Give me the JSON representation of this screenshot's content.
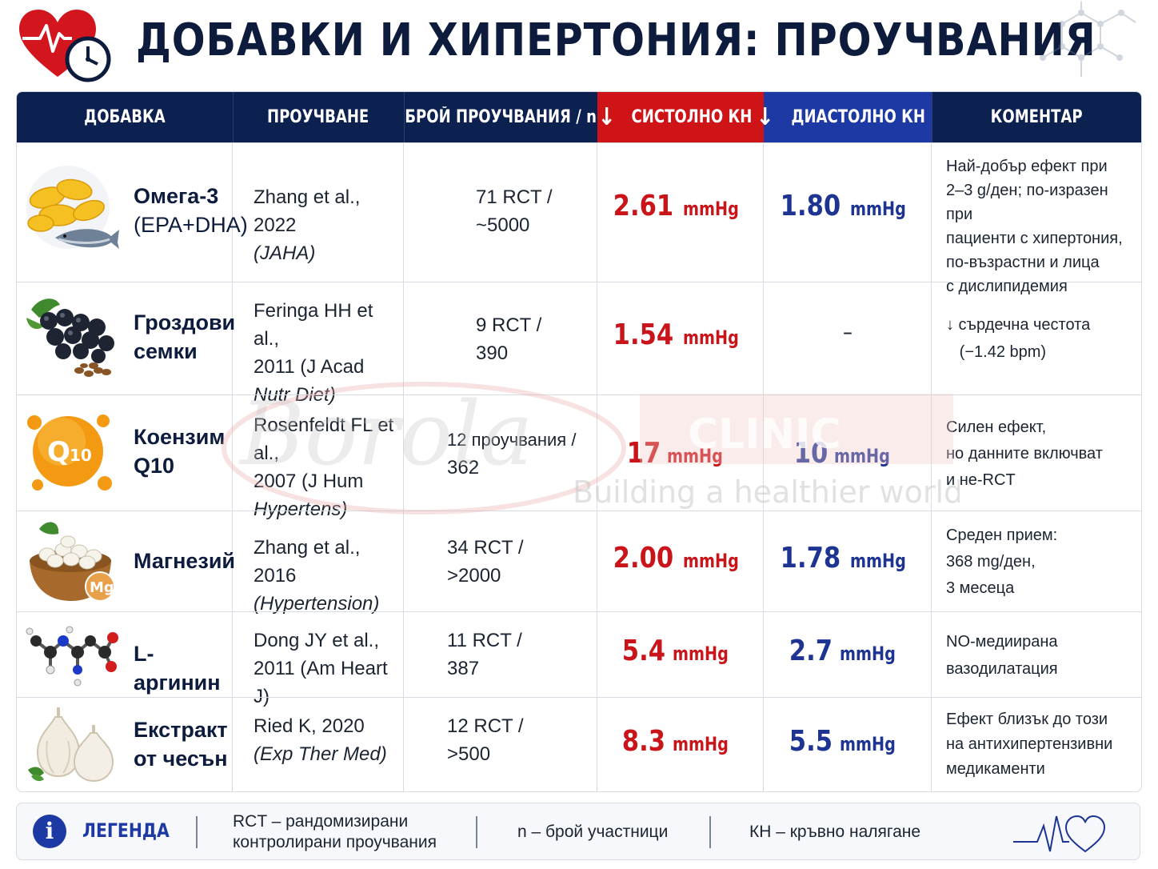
{
  "title": "ДОБАВКИ И ХИПЕРТОНИЯ: ПРОУЧВАНИЯ",
  "colors": {
    "navy": "#0d2150",
    "red": "#cf1418",
    "blue": "#1d39a3"
  },
  "headers": {
    "supplement": "ДОБАВКА",
    "study": "ПРОУЧВАНЕ",
    "count": "БРОЙ ПРОУЧВАНИЯ / n",
    "arrow": "↓",
    "systolic": "СИСТОЛНО КН",
    "diastolic": "ДИАСТОЛНО КН",
    "comment": "КОМЕНТАР"
  },
  "rows": [
    {
      "icon": "fish-oil-capsules-icon",
      "name_bold": "Омега-3",
      "name_line2": "(EPA+DHA)",
      "study_line1": "Zhang et al., 2022",
      "study_line2": "(JAHA)",
      "study_line3": "",
      "count_line1": "71 RCT /",
      "count_line2": "~5000",
      "sys_num": "2.61",
      "sys_unit": "mmHg",
      "dia_num": "1.80",
      "dia_unit": "mmHg",
      "comment": [
        "Най-добър ефект при",
        "2–3 g/ден; по-изразен при",
        "пациенти с хипертония,",
        "по-възрастни и лица",
        "с дислипидемия"
      ]
    },
    {
      "icon": "grapes-icon",
      "name_bold": "Гроздови",
      "name_line2": "семки",
      "study_line1": "Feringa HH et al.,",
      "study_line2": "2011 (J Acad",
      "study_line3": "Nutr Diet)",
      "count_line1": "9 RCT /",
      "count_line2": "390",
      "sys_num": "1.54",
      "sys_unit": "mmHg",
      "dia_num": "–",
      "dia_unit": "",
      "comment": [
        "↓ сърдечна честота",
        "   (−1.42 bpm)"
      ]
    },
    {
      "icon": "coenzyme-q10-icon",
      "name_bold": "Коензим",
      "name_line2": "Q10",
      "study_line1": "Rosenfeldt FL et al.,",
      "study_line2": "2007 (J Hum",
      "study_line3": "Hypertens)",
      "count_line1": "12 проучвания /",
      "count_line2": "362",
      "sys_num": "17",
      "sys_unit": "mmHg",
      "dia_num": "10",
      "dia_unit": "mmHg",
      "comment": [
        "Силен ефект,",
        "но данните включват",
        "и не-RCT"
      ]
    },
    {
      "icon": "magnesium-bowl-icon",
      "name_bold": "Магнезий",
      "name_line2": "",
      "study_line1": "Zhang et al., 2016",
      "study_line2": "(Hypertension)",
      "study_line3": "",
      "count_line1": "34 RCT /",
      "count_line2": ">2000",
      "sys_num": "2.00",
      "sys_unit": "mmHg",
      "dia_num": "1.78",
      "dia_unit": "mmHg",
      "comment": [
        "Среден прием:",
        "368 mg/ден,",
        "3 месеца"
      ]
    },
    {
      "icon": "arginine-molecule-icon",
      "name_bold": "L-аргинин",
      "name_line2": "",
      "study_line1": "Dong JY et al.,",
      "study_line2": "2011 (Am Heart J)",
      "study_line3": "",
      "count_line1": "11 RCT /",
      "count_line2": "387",
      "sys_num": "5.4",
      "sys_unit": "mmHg",
      "dia_num": "2.7",
      "dia_unit": "mmHg",
      "comment": [
        "NO-медиирана",
        "вазодилатация"
      ]
    },
    {
      "icon": "garlic-icon",
      "name_bold": "Екстракт",
      "name_line2": "от чесън",
      "study_line1": "Ried K, 2020",
      "study_line2": "(Exp Ther Med)",
      "study_line3": "",
      "count_line1": "12 RCT /",
      "count_line2": ">500",
      "sys_num": "8.3",
      "sys_unit": "mmHg",
      "dia_num": "5.5",
      "dia_unit": "mmHg",
      "comment": [
        "Ефект близък до този",
        "на антихипертензивни",
        "медикаменти"
      ]
    }
  ],
  "watermark": {
    "script": "Borola",
    "brand": "CLINIC",
    "tagline": "Building a healthier world"
  },
  "legend": {
    "icon": "info-icon",
    "info_glyph": "i",
    "title": "ЛЕГЕНДА",
    "rct_line1": "RCT – рандомизирани",
    "rct_line2": "контролирани проучвания",
    "n": "n – брой участници",
    "kn": "КН – кръвно налягане"
  }
}
